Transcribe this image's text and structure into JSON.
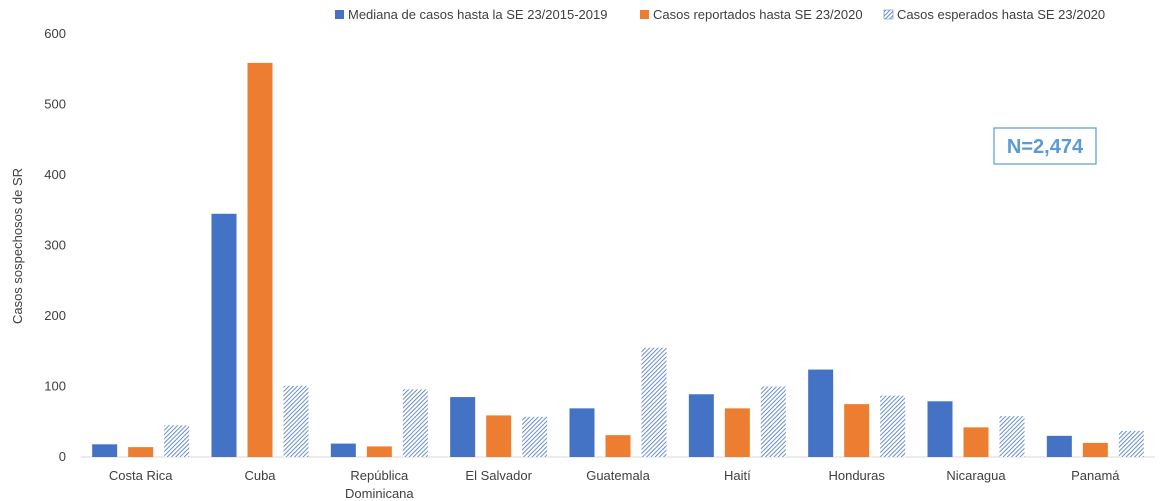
{
  "chart_data": {
    "type": "bar",
    "categories": [
      "Costa Rica",
      "Cuba",
      "República Dominicana",
      "El Salvador",
      "Guatemala",
      "Haití",
      "Honduras",
      "Nicaragua",
      "Panamá"
    ],
    "series": [
      {
        "name": "Mediana de casos hasta la SE 23/2015-2019",
        "color": "#4472C4",
        "pattern": "solid",
        "values": [
          18,
          345,
          19,
          85,
          69,
          89,
          124,
          79,
          30
        ]
      },
      {
        "name": "Casos reportados hasta SE 23/2020",
        "color": "#ED7D31",
        "pattern": "solid",
        "values": [
          14,
          559,
          15,
          59,
          31,
          69,
          75,
          42,
          20
        ]
      },
      {
        "name": "Casos esperados hasta SE 23/2020",
        "color": "#4472C4",
        "pattern": "hatched",
        "values": [
          45,
          101,
          96,
          57,
          155,
          100,
          87,
          58,
          37
        ]
      }
    ],
    "ylabel": "Casos sospechosos de SR",
    "xlabel": "",
    "ylim": [
      0,
      600
    ],
    "yticks": [
      0,
      100,
      200,
      300,
      400,
      500,
      600
    ],
    "grid": false,
    "legend_position": "top",
    "annotation": {
      "text": "N=2,474",
      "color": "#5B9BD5"
    }
  }
}
